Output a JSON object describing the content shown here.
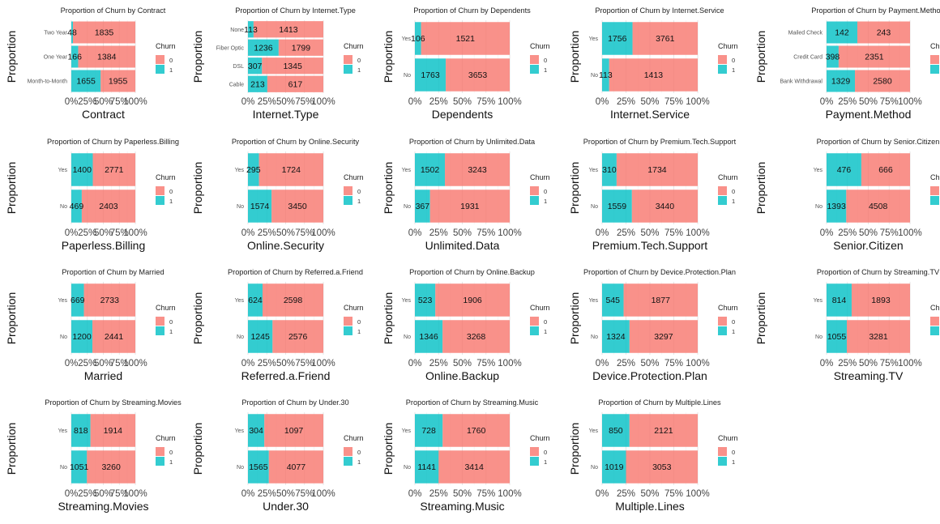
{
  "chart_data": {
    "type": "bar",
    "stacked_proportion": true,
    "title_prefix": "Proportion of Churn by ",
    "ylabel": "Proportion",
    "xticks": [
      "0%",
      "25%",
      "50%",
      "75%",
      "100%"
    ],
    "xlim": [
      0,
      1
    ],
    "legend": {
      "title": "Churn",
      "position": "right",
      "entries": [
        "0",
        "1"
      ]
    },
    "colors": {
      "0": "#F8766D",
      "1": "#00BFC4"
    },
    "panels": [
      {
        "name": "Contract",
        "categories": [
          "Two Year",
          "One Year",
          "Month-to-Month"
        ],
        "churn1": [
          48,
          166,
          1655
        ],
        "churn0": [
          1835,
          1384,
          1955
        ]
      },
      {
        "name": "Internet.Type",
        "categories": [
          "None",
          "Fiber Optic",
          "DSL",
          "Cable"
        ],
        "churn1": [
          113,
          1236,
          307,
          213
        ],
        "churn0": [
          1413,
          1799,
          1345,
          617
        ]
      },
      {
        "name": "Dependents",
        "categories": [
          "Yes",
          "No"
        ],
        "churn1": [
          106,
          1763
        ],
        "churn0": [
          1521,
          3653
        ]
      },
      {
        "name": "Internet.Service",
        "categories": [
          "Yes",
          "No"
        ],
        "churn1": [
          1756,
          113
        ],
        "churn0": [
          3761,
          1413
        ]
      },
      {
        "name": "Payment.Method",
        "categories": [
          "Mailed Check",
          "Credit Card",
          "Bank Withdrawal"
        ],
        "churn1": [
          142,
          398,
          1329
        ],
        "churn0": [
          243,
          2351,
          2580
        ]
      },
      {
        "name": "Paperless.Billing",
        "categories": [
          "Yes",
          "No"
        ],
        "churn1": [
          1400,
          469
        ],
        "churn0": [
          2771,
          2403
        ]
      },
      {
        "name": "Online.Security",
        "categories": [
          "Yes",
          "No"
        ],
        "churn1": [
          295,
          1574
        ],
        "churn0": [
          1724,
          3450
        ]
      },
      {
        "name": "Unlimited.Data",
        "categories": [
          "Yes",
          "No"
        ],
        "churn1": [
          1502,
          367
        ],
        "churn0": [
          3243,
          1931
        ]
      },
      {
        "name": "Premium.Tech.Support",
        "categories": [
          "Yes",
          "No"
        ],
        "churn1": [
          310,
          1559
        ],
        "churn0": [
          1734,
          3440
        ]
      },
      {
        "name": "Senior.Citizen",
        "categories": [
          "Yes",
          "No"
        ],
        "churn1": [
          476,
          1393
        ],
        "churn0": [
          666,
          4508
        ]
      },
      {
        "name": "Married",
        "categories": [
          "Yes",
          "No"
        ],
        "churn1": [
          669,
          1200
        ],
        "churn0": [
          2733,
          2441
        ]
      },
      {
        "name": "Referred.a.Friend",
        "categories": [
          "Yes",
          "No"
        ],
        "churn1": [
          624,
          1245
        ],
        "churn0": [
          2598,
          2576
        ]
      },
      {
        "name": "Online.Backup",
        "categories": [
          "Yes",
          "No"
        ],
        "churn1": [
          523,
          1346
        ],
        "churn0": [
          1906,
          3268
        ]
      },
      {
        "name": "Device.Protection.Plan",
        "categories": [
          "Yes",
          "No"
        ],
        "churn1": [
          545,
          1324
        ],
        "churn0": [
          1877,
          3297
        ]
      },
      {
        "name": "Streaming.TV",
        "categories": [
          "Yes",
          "No"
        ],
        "churn1": [
          814,
          1055
        ],
        "churn0": [
          1893,
          3281
        ]
      },
      {
        "name": "Streaming.Movies",
        "categories": [
          "Yes",
          "No"
        ],
        "churn1": [
          818,
          1051
        ],
        "churn0": [
          1914,
          3260
        ]
      },
      {
        "name": "Under.30",
        "categories": [
          "Yes",
          "No"
        ],
        "churn1": [
          304,
          1565
        ],
        "churn0": [
          1097,
          4077
        ]
      },
      {
        "name": "Streaming.Music",
        "categories": [
          "Yes",
          "No"
        ],
        "churn1": [
          728,
          1141
        ],
        "churn0": [
          1760,
          3414
        ]
      },
      {
        "name": "Multiple.Lines",
        "categories": [
          "Yes",
          "No"
        ],
        "churn1": [
          850,
          1019
        ],
        "churn0": [
          2121,
          3053
        ]
      }
    ]
  }
}
